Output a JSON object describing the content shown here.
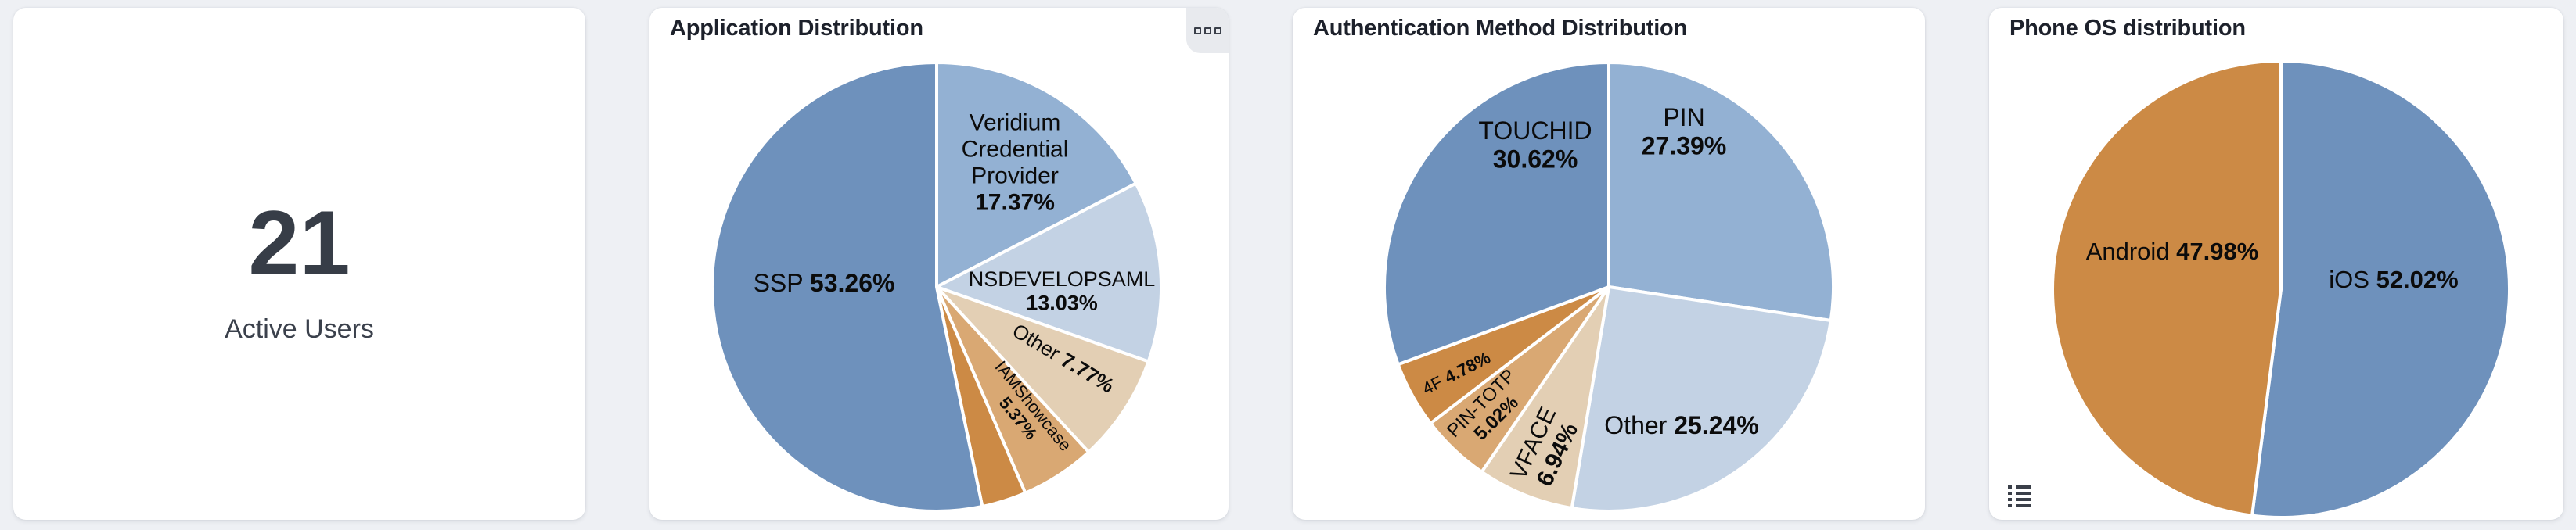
{
  "page": {
    "background": "#eef0f4"
  },
  "cards": {
    "active_users": {
      "value": "21",
      "label": "Active Users"
    },
    "application_distribution": {
      "title": "Application Distribution",
      "menu_icon": "grip-squares-icon"
    },
    "authentication_method_distribution": {
      "title": "Authentication Method Distribution"
    },
    "phone_os_distribution": {
      "title": "Phone OS distribution",
      "legend_icon": "list-icon"
    }
  },
  "palette": {
    "blue_dark": "#6e91bc",
    "blue_mid": "#93b1d3",
    "blue_light": "#c3d2e4",
    "tan_light": "#e3cfb4",
    "tan_mid": "#d9a873",
    "orange": "#cc8a45",
    "slice_stroke": "#ffffff",
    "label_color": "#0b0b0b"
  },
  "chart_data": [
    {
      "type": "pie",
      "title": "Application Distribution",
      "legend_position": "none",
      "radius": 287,
      "stroke": "#ffffff",
      "labels": [
        "Veridium Credential Provider",
        "NSDEVELOPSAML",
        "Other",
        "IAMShowcase",
        "",
        "SSP"
      ],
      "values": [
        17.37,
        13.03,
        7.77,
        5.37,
        3.2,
        53.26
      ],
      "slices": [
        {
          "label": "Veridium Credential Provider",
          "pct": 17.37,
          "color": "#93b1d3",
          "text": {
            "pos": [
              400,
              140
            ],
            "rotate": 0,
            "size": 30,
            "lines": [
              [
                {
                  "t": "Veridium",
                  "b": false
                }
              ],
              [
                {
                  "t": "Credential",
                  "b": false
                }
              ],
              [
                {
                  "t": "Provider",
                  "b": false
                }
              ],
              [
                {
                  "t": "17.37%",
                  "b": true
                }
              ]
            ]
          }
        },
        {
          "label": "NSDEVELOPSAML",
          "pct": 13.03,
          "color": "#c3d2e4",
          "text": {
            "pos": [
              460,
              305
            ],
            "rotate": 0,
            "size": 27,
            "lines": [
              [
                {
                  "t": "NSDEVELOPSAML",
                  "b": false
                }
              ],
              [
                {
                  "t": "13.03%",
                  "b": true
                }
              ]
            ]
          }
        },
        {
          "label": "Other",
          "pct": 7.77,
          "color": "#e3cfb4",
          "text": {
            "pos": [
              462,
              391
            ],
            "rotate": 31,
            "size": 26,
            "lines": [
              [
                {
                  "t": "Other ",
                  "b": false
                },
                {
                  "t": "7.77%",
                  "b": true
                }
              ]
            ]
          }
        },
        {
          "label": "IAMShowcase",
          "pct": 5.37,
          "color": "#d9a873",
          "text": {
            "pos": [
              414,
              460
            ],
            "rotate": 51,
            "size": 22,
            "lines": [
              [
                {
                  "t": "IAMShowcase",
                  "b": false
                }
              ],
              [
                {
                  "t": "5.37%",
                  "b": true
                }
              ]
            ]
          }
        },
        {
          "label": "",
          "pct": 3.2,
          "color": "#cc8a45"
        },
        {
          "label": "SSP",
          "pct": 53.26,
          "color": "#6e91bc",
          "text": {
            "pos": [
              156,
              295
            ],
            "rotate": 0,
            "size": 32,
            "lines": [
              [
                {
                  "t": "SSP ",
                  "b": false
                },
                {
                  "t": "53.26%",
                  "b": true
                }
              ]
            ]
          }
        }
      ]
    },
    {
      "type": "pie",
      "title": "Authentication Method Distribution",
      "legend_position": "none",
      "radius": 287,
      "stroke": "#ffffff",
      "labels": [
        "PIN",
        "Other",
        "VFACE",
        "PIN-TOTP",
        "4F",
        "TOUCHID"
      ],
      "values": [
        27.39,
        25.24,
        6.94,
        5.02,
        4.78,
        30.62
      ],
      "slices": [
        {
          "label": "PIN",
          "pct": 27.39,
          "color": "#93b1d3",
          "text": {
            "pos": [
              396,
              101
            ],
            "rotate": 0,
            "size": 32,
            "lines": [
              [
                {
                  "t": "PIN",
                  "b": false
                }
              ],
              [
                {
                  "t": "27.39%",
                  "b": true
                }
              ]
            ]
          }
        },
        {
          "label": "Other",
          "pct": 25.24,
          "color": "#c3d2e4",
          "text": {
            "pos": [
              393,
              477
            ],
            "rotate": 0,
            "size": 32,
            "lines": [
              [
                {
                  "t": "Other ",
                  "b": false
                },
                {
                  "t": "25.24%",
                  "b": true
                }
              ]
            ]
          }
        },
        {
          "label": "VFACE",
          "pct": 6.94,
          "color": "#e3cfb4",
          "text": {
            "pos": [
              218,
              507
            ],
            "rotate": -65,
            "size": 30,
            "lines": [
              [
                {
                  "t": "VFACE",
                  "b": false
                }
              ],
              [
                {
                  "t": "6.94%",
                  "b": true
                }
              ]
            ]
          }
        },
        {
          "label": "PIN-TOTP",
          "pct": 5.02,
          "color": "#d9a873",
          "text": {
            "pos": [
              146,
              458
            ],
            "rotate": -45,
            "size": 24,
            "lines": [
              [
                {
                  "t": "PIN-TOTP",
                  "b": false
                }
              ],
              [
                {
                  "t": "5.02%",
                  "b": true
                }
              ]
            ]
          }
        },
        {
          "label": "4F",
          "pct": 4.78,
          "color": "#cc8a45",
          "text": {
            "pos": [
              105,
              410
            ],
            "rotate": -27,
            "size": 22,
            "lines": [
              [
                {
                  "t": "4F ",
                  "b": false
                },
                {
                  "t": "4.78%",
                  "b": true
                }
              ]
            ]
          }
        },
        {
          "label": "TOUCHID",
          "pct": 30.62,
          "color": "#6e91bc",
          "text": {
            "pos": [
              206,
              118
            ],
            "rotate": 0,
            "size": 32,
            "lines": [
              [
                {
                  "t": "TOUCHID",
                  "b": false
                }
              ],
              [
                {
                  "t": "30.62%",
                  "b": true
                }
              ]
            ]
          }
        }
      ]
    },
    {
      "type": "pie",
      "title": "Phone OS distribution",
      "legend_position": "none",
      "radius": 292,
      "stroke": "#ffffff",
      "labels": [
        "iOS",
        "Android"
      ],
      "values": [
        52.02,
        47.98
      ],
      "slices": [
        {
          "label": "iOS",
          "pct": 52.02,
          "color": "#6e91bc",
          "text": {
            "pos": [
              444,
              287
            ],
            "rotate": 0,
            "size": 31,
            "lines": [
              [
                {
                  "t": "iOS ",
                  "b": false
                },
                {
                  "t": "52.02%",
                  "b": true
                }
              ]
            ]
          }
        },
        {
          "label": "Android",
          "pct": 47.98,
          "color": "#cc8a45",
          "text": {
            "pos": [
              161,
              251
            ],
            "rotate": 0,
            "size": 31,
            "lines": [
              [
                {
                  "t": "Android ",
                  "b": false
                },
                {
                  "t": "47.98%",
                  "b": true
                }
              ]
            ]
          }
        }
      ]
    }
  ]
}
